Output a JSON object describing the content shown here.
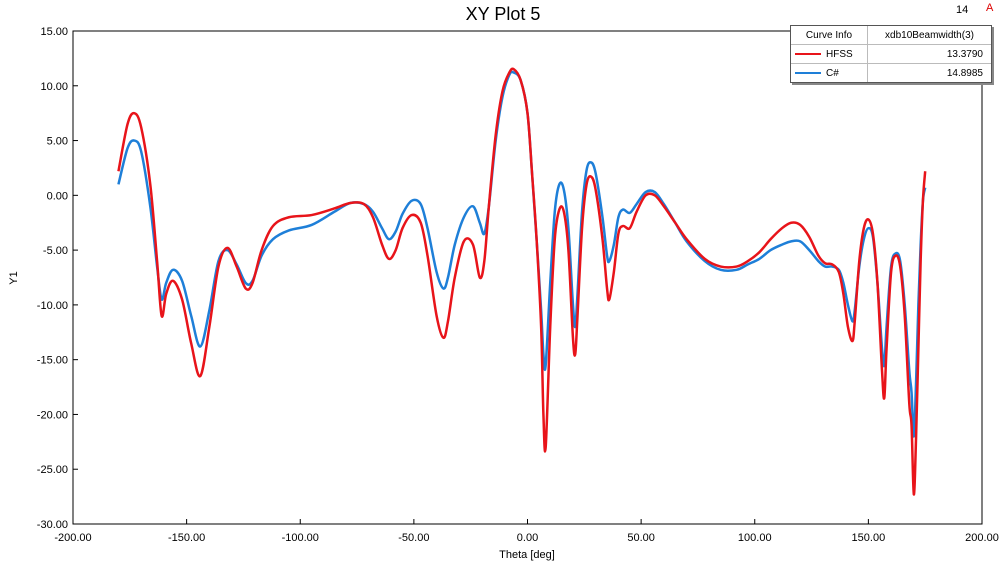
{
  "corner": {
    "number": "14",
    "mark": "A"
  },
  "chart_data": {
    "type": "line",
    "title": "XY Plot 5",
    "xlabel": "Theta [deg]",
    "ylabel": "Y1",
    "xlim": [
      -200,
      200
    ],
    "ylim": [
      -30,
      15
    ],
    "x_ticks": [
      -200,
      -150,
      -100,
      -50,
      0,
      50,
      100,
      150,
      200
    ],
    "y_ticks": [
      15,
      10,
      5,
      0,
      -5,
      -10,
      -15,
      -20,
      -25,
      -30
    ],
    "x_tick_labels": [
      "-200.00",
      "-150.00",
      "-100.00",
      "-50.00",
      "0.00",
      "50.00",
      "100.00",
      "150.00",
      "200.00"
    ],
    "y_tick_labels": [
      "15.00",
      "10.00",
      "5.00",
      "0.00",
      "-5.00",
      "-10.00",
      "-15.00",
      "-20.00",
      "-25.00",
      "-30.00"
    ],
    "grid": false,
    "legend_position": "top-right",
    "legend": {
      "header": [
        "Curve Info",
        "xdb10Beamwidth(3)"
      ],
      "rows": [
        {
          "name": "HFSS",
          "value": "13.3790"
        },
        {
          "name": "C#",
          "value": "14.8985"
        }
      ]
    },
    "series": [
      {
        "name": "HFSS",
        "color": "#e8141a",
        "x": [
          -180,
          -176,
          -173,
          -170,
          -166,
          -163,
          -161,
          -159,
          -156,
          -152,
          -148,
          -144,
          -140,
          -136,
          -132,
          -128,
          -124,
          -121,
          -117,
          -112,
          -105,
          -95,
          -85,
          -78,
          -72,
          -68,
          -64,
          -61,
          -58,
          -55,
          -51,
          -47,
          -44,
          -40,
          -37,
          -35,
          -32,
          -28,
          -24,
          -21,
          -19,
          -17,
          -14,
          -11,
          -8,
          -6,
          -3,
          0,
          2,
          4,
          6,
          7,
          8,
          10,
          12,
          14,
          16,
          18,
          20,
          21,
          22,
          24,
          26,
          28,
          30,
          33,
          35,
          36,
          38,
          40,
          42,
          45,
          48,
          52,
          56,
          60,
          65,
          70,
          78,
          85,
          92,
          97,
          102,
          107,
          112,
          116,
          120,
          124,
          128,
          131,
          134,
          137,
          139,
          141,
          143,
          144,
          146,
          148,
          150,
          152,
          154,
          156,
          157,
          158,
          160,
          162,
          164,
          166,
          168,
          169,
          170,
          171,
          172,
          173,
          174,
          175
        ],
        "y": [
          2.2,
          6.5,
          7.5,
          6.2,
          1.0,
          -6.0,
          -11.0,
          -9.0,
          -7.8,
          -9.5,
          -13.5,
          -16.5,
          -12.0,
          -6.5,
          -4.8,
          -6.5,
          -8.5,
          -8.0,
          -5.0,
          -2.8,
          -2.0,
          -1.8,
          -1.2,
          -0.7,
          -0.8,
          -2.0,
          -4.5,
          -5.8,
          -5.0,
          -3.0,
          -1.8,
          -2.5,
          -5.5,
          -11.0,
          -13.0,
          -11.5,
          -7.5,
          -4.2,
          -4.5,
          -7.5,
          -6.0,
          -1.0,
          5.5,
          9.5,
          11.2,
          11.5,
          10.5,
          7.5,
          2.0,
          -4.0,
          -12.0,
          -20.0,
          -23.0,
          -12.0,
          -4.0,
          -1.3,
          -1.5,
          -5.0,
          -13.0,
          -14.5,
          -11.0,
          -3.0,
          1.0,
          1.7,
          0.5,
          -4.0,
          -8.5,
          -9.5,
          -7.0,
          -3.5,
          -2.8,
          -3.0,
          -1.5,
          0.0,
          0.0,
          -1.0,
          -2.5,
          -4.0,
          -5.8,
          -6.5,
          -6.5,
          -6.0,
          -5.2,
          -4.0,
          -3.0,
          -2.5,
          -2.7,
          -3.8,
          -5.5,
          -6.2,
          -6.3,
          -7.0,
          -9.0,
          -12.0,
          -13.3,
          -11.5,
          -6.0,
          -3.0,
          -2.2,
          -3.5,
          -8.0,
          -16.0,
          -18.5,
          -14.0,
          -7.0,
          -5.5,
          -6.5,
          -11.0,
          -19.0,
          -21.0,
          -27.3,
          -22.0,
          -14.0,
          -6.0,
          -0.5,
          2.2
        ]
      },
      {
        "name": "C#",
        "color": "#1e7fd8",
        "x": [
          -180,
          -176,
          -173,
          -170,
          -166,
          -163,
          -161,
          -159,
          -156,
          -152,
          -148,
          -144,
          -140,
          -136,
          -132,
          -128,
          -124,
          -121,
          -117,
          -112,
          -105,
          -95,
          -85,
          -78,
          -72,
          -68,
          -64,
          -61,
          -58,
          -55,
          -51,
          -47,
          -44,
          -40,
          -37,
          -35,
          -32,
          -28,
          -24,
          -21,
          -19,
          -17,
          -14,
          -11,
          -8,
          -6,
          -3,
          0,
          2,
          4,
          6,
          7,
          8,
          10,
          12,
          14,
          16,
          18,
          20,
          21,
          22,
          24,
          26,
          28,
          30,
          33,
          35,
          36,
          38,
          40,
          42,
          45,
          48,
          52,
          56,
          60,
          65,
          70,
          78,
          85,
          92,
          97,
          102,
          107,
          112,
          116,
          120,
          124,
          128,
          131,
          134,
          137,
          139,
          141,
          143,
          144,
          146,
          148,
          150,
          152,
          154,
          156,
          157,
          158,
          160,
          162,
          164,
          166,
          168,
          169,
          170,
          171,
          172,
          173,
          174,
          175
        ],
        "y": [
          1.0,
          4.3,
          5.0,
          4.0,
          -1.0,
          -6.5,
          -9.5,
          -8.0,
          -6.8,
          -7.8,
          -11.0,
          -13.8,
          -10.5,
          -6.0,
          -5.0,
          -6.3,
          -8.0,
          -7.8,
          -5.5,
          -4.0,
          -3.2,
          -2.7,
          -1.5,
          -0.7,
          -0.8,
          -1.5,
          -3.0,
          -4.0,
          -3.3,
          -1.7,
          -0.5,
          -0.8,
          -3.0,
          -7.0,
          -8.5,
          -7.5,
          -4.5,
          -2.0,
          -1.0,
          -2.5,
          -3.5,
          -1.0,
          5.0,
          9.0,
          11.0,
          11.2,
          10.5,
          7.5,
          2.0,
          -4.0,
          -10.5,
          -14.5,
          -15.5,
          -8.0,
          -1.5,
          1.0,
          0.5,
          -3.0,
          -10.0,
          -12.0,
          -9.0,
          -1.5,
          2.3,
          3.0,
          2.0,
          -2.0,
          -5.5,
          -6.0,
          -4.5,
          -2.0,
          -1.3,
          -1.6,
          -0.8,
          0.3,
          0.3,
          -0.8,
          -2.5,
          -4.2,
          -6.0,
          -6.8,
          -6.8,
          -6.3,
          -5.8,
          -5.0,
          -4.5,
          -4.2,
          -4.2,
          -5.0,
          -6.0,
          -6.5,
          -6.5,
          -6.8,
          -8.0,
          -10.0,
          -11.5,
          -10.5,
          -6.5,
          -4.0,
          -3.0,
          -3.8,
          -8.0,
          -14.0,
          -15.5,
          -12.0,
          -6.5,
          -5.3,
          -6.0,
          -10.0,
          -16.0,
          -18.0,
          -22.0,
          -17.0,
          -10.0,
          -4.5,
          -0.5,
          0.7
        ]
      }
    ]
  }
}
